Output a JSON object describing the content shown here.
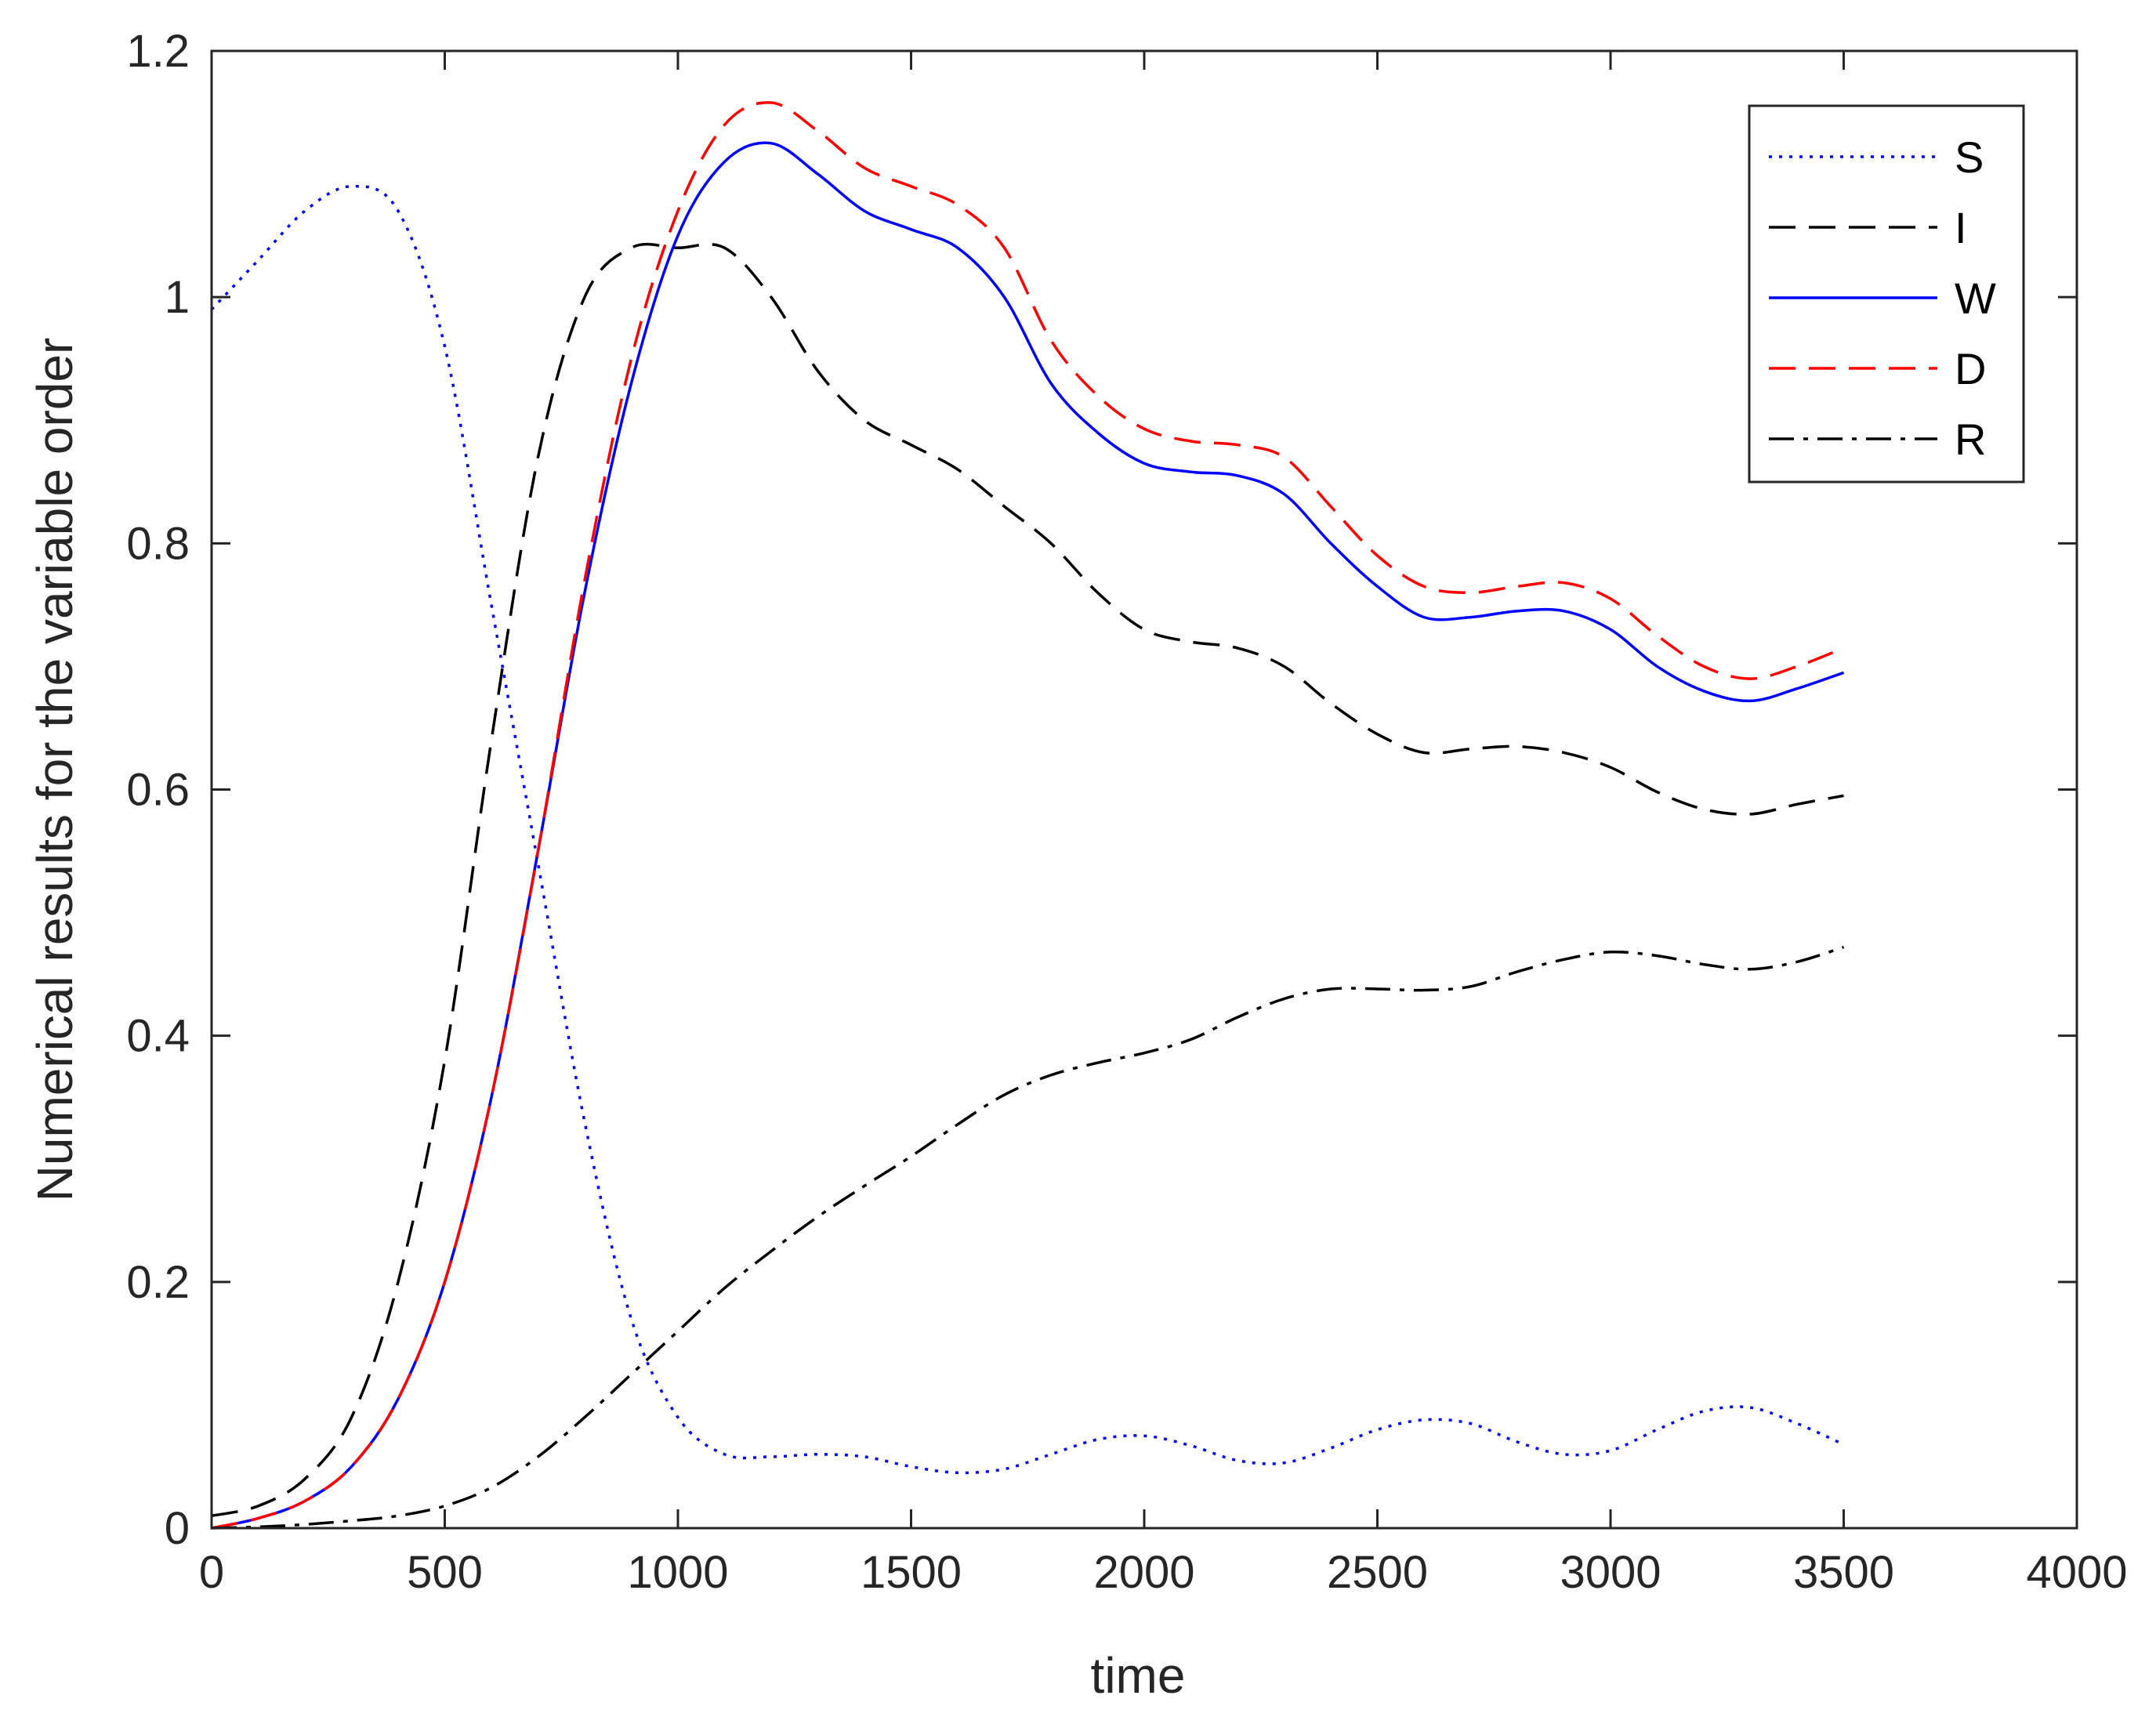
{
  "chart_data": {
    "type": "line",
    "title": "",
    "xlabel": "time",
    "ylabel": "Numerical results for the variable order",
    "xlim": [
      0,
      4000
    ],
    "ylim": [
      0,
      1.2
    ],
    "xticks": [
      0,
      500,
      1000,
      1500,
      2000,
      2500,
      3000,
      3500,
      4000
    ],
    "yticks": [
      0,
      0.2,
      0.4,
      0.6,
      0.8,
      1,
      1.2
    ],
    "xtick_labels": [
      "0",
      "500",
      "1000",
      "1500",
      "2000",
      "2500",
      "3000",
      "3500",
      "4000"
    ],
    "ytick_labels": [
      "0",
      "0.2",
      "0.4",
      "0.6",
      "0.8",
      "1",
      "1.2"
    ],
    "grid": false,
    "legend_position": "top-right",
    "series": [
      {
        "name": "S",
        "color": "#0000ff",
        "style": "dotted",
        "x": [
          0,
          100,
          200,
          300,
          400,
          500,
          600,
          700,
          800,
          900,
          1000,
          1100,
          1200,
          1300,
          1400,
          1500,
          1600,
          1700,
          1800,
          1900,
          2000,
          2100,
          2200,
          2300,
          2400,
          2500,
          2600,
          2700,
          2800,
          2900,
          3000,
          3100,
          3200,
          3300,
          3400,
          3500
        ],
        "values": [
          0.99,
          1.03,
          1.07,
          1.09,
          1.07,
          0.96,
          0.75,
          0.54,
          0.33,
          0.17,
          0.09,
          0.06,
          0.058,
          0.06,
          0.058,
          0.05,
          0.045,
          0.048,
          0.06,
          0.072,
          0.075,
          0.067,
          0.055,
          0.053,
          0.065,
          0.08,
          0.088,
          0.085,
          0.07,
          0.06,
          0.063,
          0.08,
          0.095,
          0.098,
          0.085,
          0.068
        ]
      },
      {
        "name": "I",
        "color": "#000000",
        "style": "dashed",
        "x": [
          0,
          100,
          200,
          300,
          400,
          500,
          600,
          700,
          800,
          900,
          1000,
          1100,
          1200,
          1300,
          1400,
          1500,
          1600,
          1700,
          1800,
          1900,
          2000,
          2100,
          2200,
          2300,
          2400,
          2500,
          2600,
          2700,
          2800,
          2900,
          3000,
          3100,
          3200,
          3300,
          3400,
          3500
        ],
        "values": [
          0.01,
          0.018,
          0.04,
          0.09,
          0.2,
          0.38,
          0.64,
          0.87,
          1.0,
          1.04,
          1.04,
          1.04,
          1.0,
          0.94,
          0.9,
          0.88,
          0.86,
          0.83,
          0.8,
          0.76,
          0.73,
          0.72,
          0.715,
          0.7,
          0.67,
          0.645,
          0.63,
          0.633,
          0.635,
          0.63,
          0.618,
          0.598,
          0.584,
          0.58,
          0.588,
          0.595
        ]
      },
      {
        "name": "W",
        "color": "#0000ff",
        "style": "solid",
        "x": [
          0,
          100,
          200,
          300,
          400,
          500,
          600,
          700,
          800,
          900,
          1000,
          1100,
          1200,
          1300,
          1400,
          1500,
          1600,
          1700,
          1800,
          1900,
          2000,
          2100,
          2200,
          2300,
          2400,
          2500,
          2600,
          2700,
          2800,
          2900,
          3000,
          3100,
          3200,
          3300,
          3400,
          3500
        ],
        "values": [
          0.0,
          0.008,
          0.022,
          0.05,
          0.105,
          0.2,
          0.35,
          0.55,
          0.76,
          0.93,
          1.05,
          1.11,
          1.125,
          1.1,
          1.07,
          1.055,
          1.04,
          1.0,
          0.93,
          0.89,
          0.865,
          0.858,
          0.855,
          0.84,
          0.8,
          0.765,
          0.74,
          0.74,
          0.745,
          0.745,
          0.73,
          0.7,
          0.68,
          0.672,
          0.682,
          0.695
        ]
      },
      {
        "name": "D",
        "color": "#ff0000",
        "style": "dashed",
        "x": [
          0,
          100,
          200,
          300,
          400,
          500,
          600,
          700,
          800,
          900,
          1000,
          1100,
          1200,
          1300,
          1400,
          1500,
          1600,
          1700,
          1800,
          1900,
          2000,
          2100,
          2200,
          2300,
          2400,
          2500,
          2600,
          2700,
          2800,
          2900,
          3000,
          3100,
          3200,
          3300,
          3400,
          3500
        ],
        "values": [
          0.0,
          0.008,
          0.022,
          0.05,
          0.105,
          0.2,
          0.35,
          0.55,
          0.77,
          0.95,
          1.07,
          1.14,
          1.158,
          1.135,
          1.105,
          1.09,
          1.075,
          1.04,
          0.965,
          0.92,
          0.893,
          0.883,
          0.88,
          0.87,
          0.83,
          0.79,
          0.765,
          0.76,
          0.765,
          0.768,
          0.755,
          0.725,
          0.7,
          0.69,
          0.7,
          0.715
        ]
      },
      {
        "name": "R",
        "color": "#000000",
        "style": "dashdot",
        "x": [
          0,
          100,
          200,
          300,
          400,
          500,
          600,
          700,
          800,
          900,
          1000,
          1100,
          1200,
          1300,
          1400,
          1500,
          1600,
          1700,
          1800,
          1900,
          2000,
          2100,
          2200,
          2300,
          2400,
          2500,
          2600,
          2700,
          2800,
          2900,
          3000,
          3100,
          3200,
          3300,
          3400,
          3500
        ],
        "values": [
          0.0,
          0.001,
          0.003,
          0.006,
          0.01,
          0.018,
          0.033,
          0.058,
          0.09,
          0.125,
          0.16,
          0.195,
          0.225,
          0.253,
          0.278,
          0.302,
          0.328,
          0.352,
          0.368,
          0.378,
          0.386,
          0.397,
          0.415,
          0.43,
          0.438,
          0.438,
          0.437,
          0.44,
          0.452,
          0.462,
          0.468,
          0.465,
          0.458,
          0.454,
          0.46,
          0.472
        ]
      }
    ]
  }
}
